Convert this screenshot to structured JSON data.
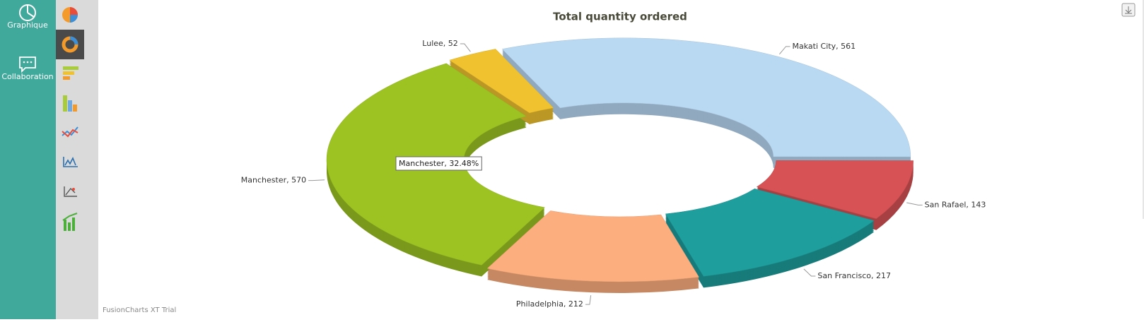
{
  "sidebar": {
    "items": [
      "Graphique",
      "Collaboration"
    ]
  },
  "chart_data": {
    "type": "doughnut3d",
    "title": "Total quantity ordered",
    "categories": [
      "Makati City",
      "San Rafael",
      "San Francisco",
      "Philadelphia",
      "Manchester",
      "Lulee"
    ],
    "values": [
      561,
      143,
      217,
      212,
      570,
      52
    ],
    "value_labels": [
      "Makati City, 561",
      "San Rafael, 143",
      "San Francisco, 217",
      "Philadelphia, 212",
      "Manchester, 570",
      "Lulee, 52"
    ],
    "colors": [
      "#b9d9f3",
      "#d65254",
      "#1e9e9d",
      "#fdae7e",
      "#9cc322",
      "#f0c22f"
    ],
    "tooltip": "Manchester, 32.48%"
  },
  "watermark": "FusionCharts XT Trial"
}
